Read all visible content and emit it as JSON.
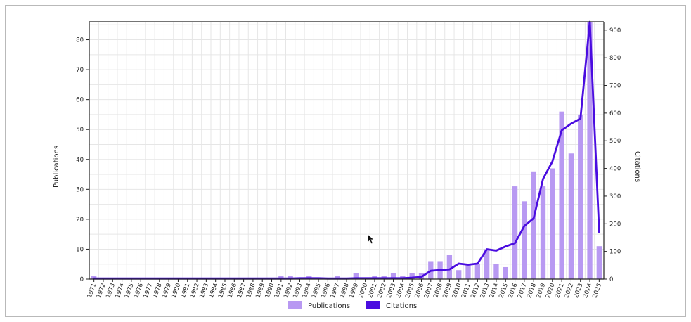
{
  "chart_data": {
    "type": "bar+line",
    "ylabel": "Publications",
    "y2label": "Citations",
    "ylim": [
      0,
      86
    ],
    "y2lim": [
      0,
      930
    ],
    "yticks": [
      0,
      10,
      20,
      30,
      40,
      50,
      60,
      70,
      80
    ],
    "y2ticks": [
      0,
      100,
      200,
      300,
      400,
      500,
      600,
      700,
      800,
      900
    ],
    "grid": true,
    "legend_position": "bottom-center",
    "categories": [
      "1971",
      "1972",
      "1973",
      "1974",
      "1975",
      "1976",
      "1977",
      "1978",
      "1979",
      "1980",
      "1981",
      "1982",
      "1983",
      "1984",
      "1985",
      "1986",
      "1987",
      "1988",
      "1989",
      "1990",
      "1991",
      "1992",
      "1993",
      "1994",
      "1995",
      "1996",
      "1997",
      "1998",
      "1999",
      "2000",
      "2001",
      "2002",
      "2003",
      "2004",
      "2005",
      "2006",
      "2007",
      "2008",
      "2009",
      "2010",
      "2011",
      "2012",
      "2013",
      "2014",
      "2015",
      "2016",
      "2017",
      "2018",
      "2019",
      "2020",
      "2021",
      "2022",
      "2023",
      "2024",
      "2025"
    ],
    "series": [
      {
        "name": "Publications",
        "kind": "bar",
        "axis": "left",
        "color": "#b899f2",
        "values": [
          1,
          0,
          0,
          0,
          0,
          0,
          0,
          0,
          0,
          0,
          0,
          0,
          0,
          0,
          0,
          0,
          0,
          0,
          0,
          0,
          1,
          1,
          0,
          1,
          0,
          0,
          1,
          0,
          2,
          0,
          1,
          1,
          2,
          1,
          2,
          2,
          6,
          6,
          8,
          3,
          5,
          5,
          10,
          5,
          4,
          31,
          26,
          36,
          31,
          37,
          56,
          42,
          55,
          86,
          11
        ]
      },
      {
        "name": "Citations",
        "kind": "line",
        "axis": "right",
        "color": "#4a0ce0",
        "values": [
          2,
          2,
          2,
          2,
          2,
          2,
          2,
          2,
          2,
          2,
          2,
          2,
          2,
          2,
          2,
          2,
          2,
          2,
          2,
          2,
          2,
          2,
          3,
          3,
          3,
          2,
          2,
          2,
          3,
          3,
          3,
          3,
          3,
          3,
          5,
          8,
          30,
          33,
          35,
          56,
          52,
          56,
          108,
          103,
          118,
          130,
          192,
          220,
          362,
          425,
          538,
          562,
          580,
          930,
          170
        ]
      }
    ]
  }
}
